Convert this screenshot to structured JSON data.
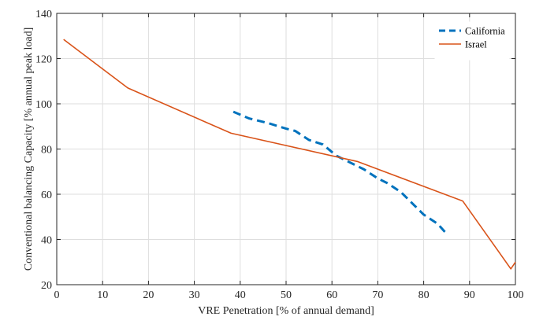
{
  "chart_data": {
    "type": "line",
    "title": "",
    "xlabel": "VRE Penetration [% of annual demand]",
    "ylabel": "Conventional balancing Capacity [% annual peak load]",
    "xlim": [
      0,
      100
    ],
    "ylim": [
      20,
      140
    ],
    "xticks": [
      0,
      10,
      20,
      30,
      40,
      50,
      60,
      70,
      80,
      90,
      100
    ],
    "yticks": [
      20,
      40,
      60,
      80,
      100,
      120,
      140
    ],
    "grid": true,
    "legend_position": "top-right",
    "series": [
      {
        "name": "California",
        "color": "#0072BD",
        "line_style": "dashed",
        "x": [
          38.5,
          42,
          46,
          50,
          52,
          55,
          58,
          61,
          64,
          67,
          70,
          72,
          75,
          78,
          80,
          83,
          85
        ],
        "y": [
          96.5,
          93.5,
          91.5,
          89,
          88,
          84,
          82,
          77,
          74,
          71,
          67,
          65,
          61,
          55,
          51,
          47,
          42.5
        ]
      },
      {
        "name": "Israel",
        "color": "#D95319",
        "line_style": "solid",
        "x": [
          1.5,
          15.5,
          38,
          65.5,
          88.5,
          99,
          100
        ],
        "y": [
          128.5,
          107,
          87,
          74.5,
          57,
          27,
          30
        ]
      }
    ]
  }
}
